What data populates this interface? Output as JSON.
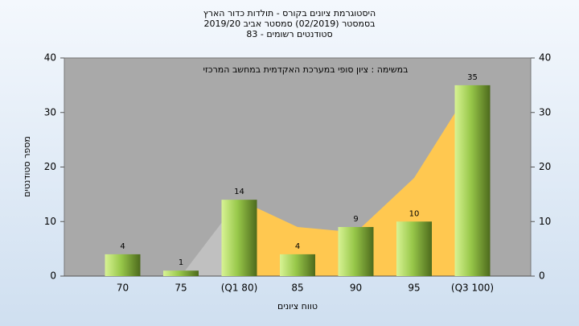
{
  "chart_data": {
    "type": "bar",
    "title": "היסטוגרמת ציונים בקורס - תולדות כדור הארץ",
    "subtitle": "בסמסטר (02/2019) סמסטר אביב 2019/20",
    "subtitle2": "סטודנטים רשומים - 83",
    "annotation": "במשימה : ציון סופי במערכת האקדמית במחשב המרכזי",
    "x_label": "טווח ציונים",
    "y_label": "מספר סטודנטים",
    "categories": [
      "70",
      "75",
      "(Q1 80)",
      "85",
      "90",
      "95",
      "(Q3 100)"
    ],
    "values": [
      4,
      1,
      14,
      4,
      9,
      10,
      35
    ],
    "color": "#98c84a",
    "areas": [
      {
        "color": "#c0c0c0",
        "values": [
          null,
          0,
          14,
          null,
          null,
          null,
          null
        ]
      },
      {
        "color": "#ffc850",
        "values": [
          null,
          null,
          14,
          9,
          8,
          18,
          35
        ]
      }
    ],
    "ylim": [
      0,
      40
    ],
    "yticks": [
      0,
      10,
      20,
      30,
      40
    ],
    "y2lim": [
      0,
      40
    ],
    "y2ticks": [
      0,
      10,
      20,
      30,
      40
    ]
  }
}
